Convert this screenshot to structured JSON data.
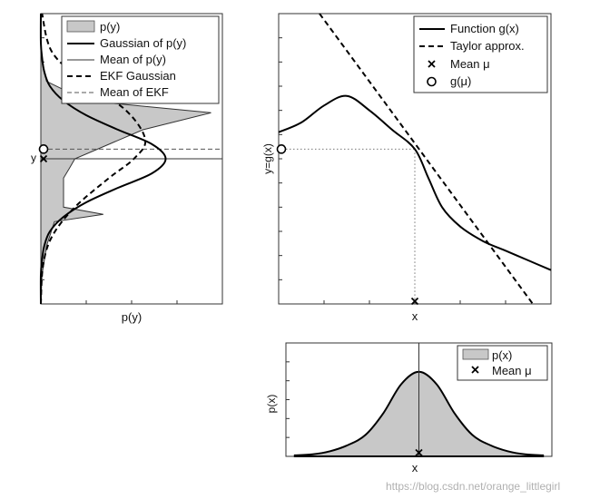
{
  "chart_data": [
    {
      "type": "area",
      "panel": "output-density",
      "xlabel": "p(y)",
      "ylabel": "y",
      "y_range": [
        -3,
        3
      ],
      "legend_position": "top-right",
      "legend": [
        {
          "name": "p(y)",
          "style": "gray-fill"
        },
        {
          "name": "Gaussian of p(y)",
          "style": "solid-thick"
        },
        {
          "name": "Mean of p(y)",
          "style": "solid-thin"
        },
        {
          "name": "EKF Gaussian",
          "style": "dashed-thick"
        },
        {
          "name": "Mean of EKF",
          "style": "dashed-thin"
        }
      ],
      "series": [
        {
          "name": "p(y)",
          "y": [
            -3.0,
            -2.4,
            -1.8,
            -1.3,
            -1.15,
            -1.0,
            -0.7,
            -0.4,
            -0.2,
            0.0,
            0.3,
            0.6,
            0.95,
            1.2,
            1.6,
            2.0,
            2.5,
            3.0
          ],
          "values": [
            0.0,
            0.01,
            0.05,
            0.12,
            0.55,
            0.2,
            0.2,
            0.2,
            0.25,
            0.3,
            0.6,
            0.9,
            1.5,
            0.4,
            0.05,
            0.01,
            0.0,
            0.0
          ]
        },
        {
          "name": "Gaussian of p(y)",
          "y": [
            -3.0,
            -2.4,
            -2.1,
            -1.8,
            -1.5,
            -1.2,
            -0.9,
            -0.6,
            -0.3,
            0.0,
            0.3,
            0.6,
            0.9,
            1.2,
            1.5,
            1.8,
            2.1,
            2.4,
            3.0
          ],
          "values": [
            0.0,
            0.0,
            0.01,
            0.03,
            0.08,
            0.2,
            0.4,
            0.68,
            0.98,
            1.1,
            0.98,
            0.68,
            0.4,
            0.2,
            0.08,
            0.03,
            0.01,
            0.0,
            0.0
          ]
        },
        {
          "name": "EKF Gaussian",
          "y": [
            -3.0,
            -2.2,
            -1.6,
            -1.0,
            -0.4,
            0.0,
            0.4,
            1.0,
            1.6,
            2.2,
            3.0
          ],
          "values": [
            0.0,
            0.02,
            0.1,
            0.3,
            0.6,
            0.82,
            0.92,
            0.75,
            0.38,
            0.1,
            0.01
          ]
        }
      ],
      "mean_p_y": 0.0,
      "mean_ekf": 0.2
    },
    {
      "type": "line",
      "panel": "transformation",
      "xlabel": "x",
      "ylabel": "y=g(x)",
      "x_range": [
        -3,
        3
      ],
      "y_range": [
        -3,
        3
      ],
      "legend_position": "top-right",
      "legend": [
        {
          "name": "Function g(x)",
          "style": "solid"
        },
        {
          "name": "Taylor approx.",
          "style": "dashed"
        },
        {
          "name": "Mean μ",
          "marker": "x"
        },
        {
          "name": "g(μ)",
          "marker": "circle"
        }
      ],
      "series": [
        {
          "name": "Function g(x)",
          "x": [
            -3.0,
            -2.5,
            -2.0,
            -1.5,
            -1.0,
            -0.5,
            0.0,
            0.3,
            0.6,
            1.0,
            1.5,
            2.0,
            2.5,
            3.0
          ],
          "y": [
            0.55,
            0.75,
            1.1,
            1.3,
            1.0,
            0.6,
            0.2,
            -0.4,
            -1.0,
            -1.4,
            -1.7,
            -1.9,
            -2.1,
            -2.3
          ]
        },
        {
          "name": "Taylor approx.",
          "x": [
            -2.1,
            2.6
          ],
          "y": [
            3.0,
            -3.0
          ]
        }
      ],
      "mean_x": 0.0,
      "g_mu": 0.2
    },
    {
      "type": "area",
      "panel": "input-density",
      "xlabel": "x",
      "ylabel": "p(x)",
      "x_range": [
        -3,
        3
      ],
      "legend_position": "top-right",
      "legend": [
        {
          "name": "p(x)",
          "style": "gray-fill"
        },
        {
          "name": "Mean μ",
          "marker": "x"
        }
      ],
      "series": [
        {
          "name": "p(x)",
          "x": [
            -2.8,
            -2.4,
            -2.0,
            -1.6,
            -1.2,
            -0.8,
            -0.4,
            0.0,
            0.4,
            0.8,
            1.2,
            1.6,
            2.0,
            2.4,
            2.8
          ],
          "values": [
            0.01,
            0.02,
            0.05,
            0.11,
            0.21,
            0.42,
            0.7,
            0.82,
            0.7,
            0.42,
            0.21,
            0.11,
            0.05,
            0.02,
            0.01
          ]
        }
      ],
      "mean_x": 0.0
    }
  ],
  "watermark": "https://blog.csdn.net/orange_littlegirl"
}
